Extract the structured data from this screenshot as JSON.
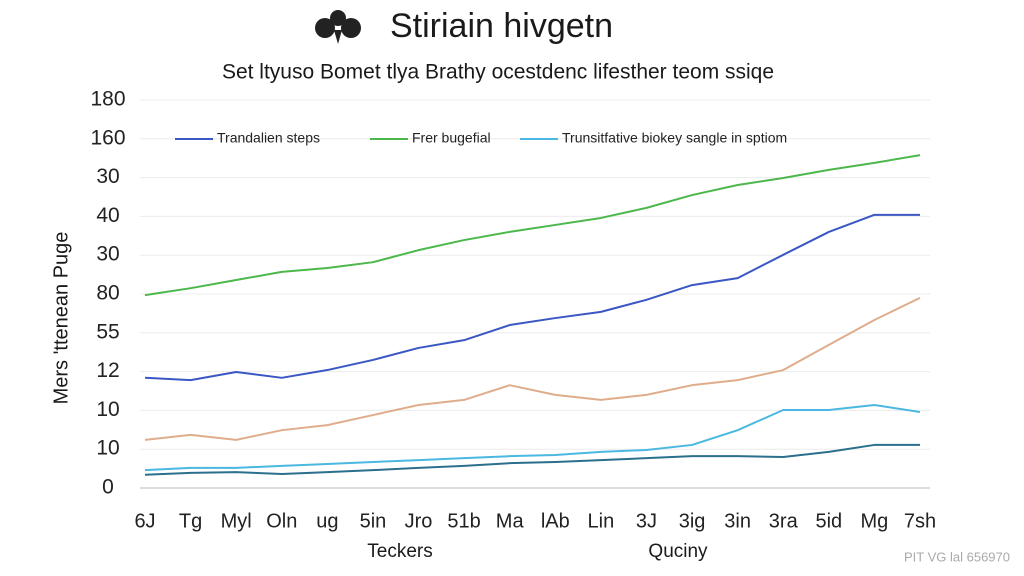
{
  "chart_data": {
    "type": "line",
    "title": "Stiriain hivgetn",
    "subtitle": "Set ltyuso Bomet tlya Brathy ocestdenc lifesther teom ssiqe",
    "ylabel": "Mers 'ttenean Puge",
    "xlabel": "Teckers",
    "xlabel2": "Quciny",
    "watermark": "PIT VG lal 656970",
    "categories": [
      "6J",
      "Tg",
      "Myl",
      "Oln",
      "ug",
      "5in",
      "Jro",
      "51b",
      "Ma",
      "lAb",
      "Lin",
      "3J",
      "3ig",
      "3in",
      "3ra",
      "5id",
      "Mg",
      "7sh"
    ],
    "ylim": [
      0,
      10
    ],
    "yticks": [
      {
        "value": 10,
        "label": "180"
      },
      {
        "value": 9,
        "label": "160"
      },
      {
        "value": 8,
        "label": "30"
      },
      {
        "value": 7,
        "label": "40"
      },
      {
        "value": 6,
        "label": "30"
      },
      {
        "value": 5,
        "label": "80"
      },
      {
        "value": 4,
        "label": "55"
      },
      {
        "value": 3,
        "label": "12"
      },
      {
        "value": 2,
        "label": "10"
      },
      {
        "value": 1,
        "label": "10"
      },
      {
        "value": 0,
        "label": "0"
      }
    ],
    "grid": true,
    "series": [
      {
        "name": "Trandalien steps",
        "color": "#3a57c4",
        "values": [
          2.84,
          2.78,
          2.99,
          2.84,
          3.04,
          3.3,
          3.61,
          3.81,
          4.2,
          4.38,
          4.54,
          4.85,
          5.23,
          5.41,
          6.01,
          6.6,
          7.04,
          7.04
        ]
      },
      {
        "name": "Frer bugefial",
        "color": "#4cb84c",
        "values": [
          4.97,
          5.15,
          5.36,
          5.57,
          5.67,
          5.82,
          6.13,
          6.39,
          6.6,
          6.78,
          6.96,
          7.22,
          7.55,
          7.81,
          7.99,
          8.2,
          8.38,
          8.58
        ]
      },
      {
        "name": "Trunsitfative biokey sangle in sptiom",
        "color": "#4ab8e0",
        "values": [
          0.46,
          0.52,
          0.52,
          0.57,
          0.62,
          0.67,
          0.72,
          0.77,
          0.82,
          0.85,
          0.93,
          0.98,
          1.11,
          1.49,
          2.01,
          2.01,
          2.14,
          1.96
        ]
      },
      {
        "color": "#e0ad8c",
        "values": [
          1.24,
          1.37,
          1.24,
          1.49,
          1.62,
          1.88,
          2.14,
          2.27,
          2.65,
          2.4,
          2.27,
          2.4,
          2.65,
          2.78,
          3.04,
          3.69,
          4.33,
          4.9
        ]
      },
      {
        "color": "#2a6f8c",
        "values": [
          0.34,
          0.39,
          0.41,
          0.36,
          0.41,
          0.46,
          0.52,
          0.57,
          0.64,
          0.67,
          0.72,
          0.77,
          0.82,
          0.82,
          0.8,
          0.93,
          1.11,
          1.11
        ]
      }
    ]
  }
}
